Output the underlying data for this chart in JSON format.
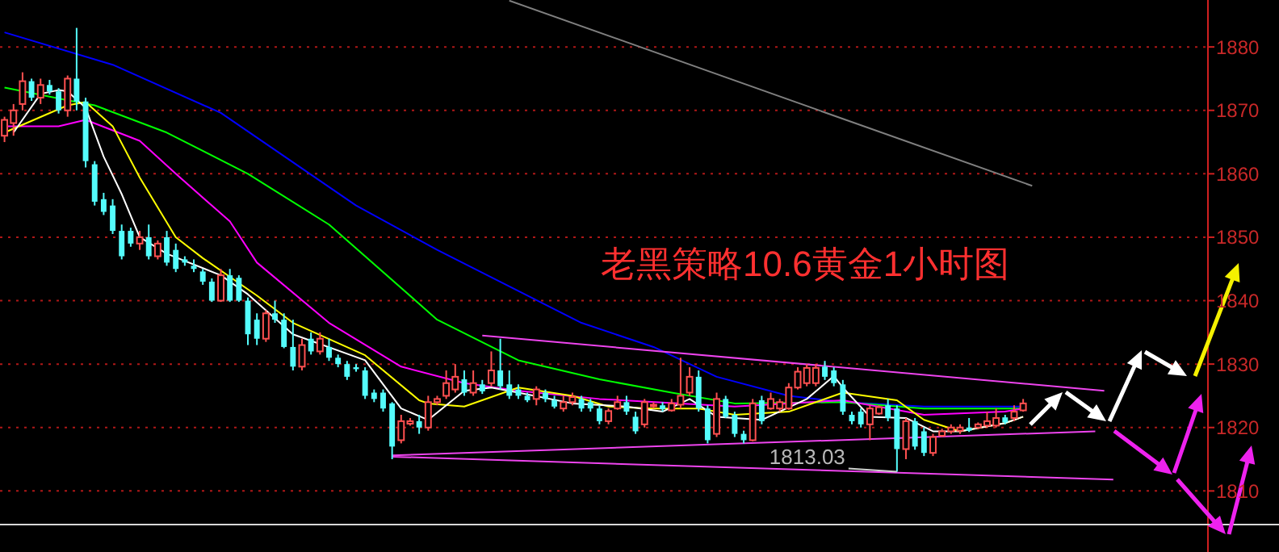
{
  "chart_data": {
    "type": "candlestick",
    "title": "老黑策略10.6黄金1小时图",
    "categories": [
      null,
      null,
      null,
      null,
      null,
      null,
      null,
      null,
      null,
      null,
      null,
      null,
      null,
      null,
      null,
      null,
      null,
      null,
      null,
      null,
      null,
      null,
      null,
      null,
      null,
      null,
      null,
      null,
      null,
      null,
      null,
      null,
      null,
      null,
      null,
      null,
      null,
      null,
      null,
      null,
      null,
      null,
      null,
      null,
      null,
      null,
      null,
      null,
      null,
      null,
      null,
      null,
      null,
      null,
      null,
      null,
      null,
      null,
      null,
      null,
      null,
      null,
      null,
      null,
      null,
      null,
      null,
      null,
      null,
      null,
      null,
      null,
      null,
      null,
      null,
      null,
      null,
      null,
      null,
      null,
      null,
      null,
      null,
      null,
      null,
      null,
      null,
      null,
      null,
      null,
      null,
      null,
      null,
      null,
      null,
      null,
      null,
      null,
      null,
      null,
      null,
      null,
      null,
      null,
      null,
      null,
      null,
      null,
      null,
      null,
      null,
      null,
      null,
      null,
      null,
      null,
      null,
      null,
      null,
      null,
      null,
      null,
      null,
      null,
      null,
      null,
      null,
      null,
      null,
      null,
      null,
      null,
      null,
      null
    ],
    "ohlc": [
      [
        1866,
        1869,
        1865,
        1868.5
      ],
      [
        1868,
        1871,
        1866,
        1870
      ],
      [
        1871,
        1876,
        1870,
        1874.6
      ],
      [
        1874.6,
        1875,
        1871.5,
        1872
      ],
      [
        1872,
        1875,
        1871,
        1874
      ],
      [
        1874,
        1874.8,
        1872.5,
        1873
      ],
      [
        1873,
        1873.5,
        1869.5,
        1870
      ],
      [
        1870,
        1875.5,
        1869,
        1875
      ],
      [
        1875,
        1883,
        1870,
        1871.4
      ],
      [
        1871.4,
        1872,
        1861,
        1862
      ],
      [
        1861.5,
        1862,
        1855,
        1855.6
      ],
      [
        1856,
        1857,
        1853.5,
        1854
      ],
      [
        1855,
        1856,
        1850.5,
        1851
      ],
      [
        1851,
        1852,
        1846.5,
        1847
      ],
      [
        1851,
        1851.5,
        1848.5,
        1849
      ],
      [
        1849,
        1851,
        1848,
        1850
      ],
      [
        1850,
        1852,
        1846.5,
        1847
      ],
      [
        1847,
        1849.5,
        1846.5,
        1849
      ],
      [
        1850,
        1851,
        1845.5,
        1846
      ],
      [
        1848,
        1849,
        1844.5,
        1845
      ],
      [
        1846.5,
        1847,
        1845.5,
        1846
      ],
      [
        1845.5,
        1846.5,
        1844.5,
        1845
      ],
      [
        1844.6,
        1845,
        1842.5,
        1843
      ],
      [
        1843,
        1843.5,
        1839.8,
        1840
      ],
      [
        1840,
        1845,
        1839.8,
        1844
      ],
      [
        1844,
        1845,
        1839.8,
        1840
      ],
      [
        1843.6,
        1844,
        1839.8,
        1840
      ],
      [
        1840,
        1840.5,
        1833,
        1834.7
      ],
      [
        1837,
        1838,
        1833,
        1834
      ],
      [
        1834,
        1838.5,
        1833.5,
        1838
      ],
      [
        1838,
        1840,
        1836.5,
        1837
      ],
      [
        1837,
        1838,
        1832.5,
        1832.7
      ],
      [
        1832.7,
        1837,
        1829,
        1829.6
      ],
      [
        1829.6,
        1834,
        1829,
        1833
      ],
      [
        1834,
        1835,
        1831.5,
        1832
      ],
      [
        1832,
        1835,
        1831.5,
        1834
      ],
      [
        1832.7,
        1834,
        1830.5,
        1831
      ],
      [
        1831,
        1831.5,
        1829.5,
        1830
      ],
      [
        1830,
        1830.5,
        1827.5,
        1828
      ],
      [
        1829.5,
        1830,
        1828.8,
        1829.2
      ],
      [
        1829,
        1829.5,
        1824.5,
        1825
      ],
      [
        1825.5,
        1826,
        1824,
        1824.5
      ],
      [
        1825.5,
        1826,
        1822.5,
        1823
      ],
      [
        1823.8,
        1824,
        1815,
        1817
      ],
      [
        1818,
        1822,
        1817.5,
        1821
      ],
      [
        1820.6,
        1821.5,
        1820.3,
        1821
      ],
      [
        1821,
        1822,
        1819,
        1820
      ],
      [
        1820,
        1825,
        1819.5,
        1824
      ],
      [
        1824,
        1825,
        1823.5,
        1824.5
      ],
      [
        1825,
        1829,
        1824.5,
        1827
      ],
      [
        1826,
        1830,
        1825.5,
        1828
      ],
      [
        1827.6,
        1829,
        1825,
        1825.5
      ],
      [
        1825.5,
        1829,
        1825,
        1827
      ],
      [
        1826.8,
        1827.5,
        1825.3,
        1825.7
      ],
      [
        1827,
        1832,
        1826.5,
        1829
      ],
      [
        1829,
        1834,
        1826,
        1826.5
      ],
      [
        1826.8,
        1829,
        1824.5,
        1825
      ],
      [
        1826,
        1826.8,
        1824.5,
        1825
      ],
      [
        1825,
        1825.5,
        1824,
        1824.3
      ],
      [
        1824.5,
        1826.5,
        1823.5,
        1826
      ],
      [
        1825.5,
        1826,
        1824,
        1824.5
      ],
      [
        1824.3,
        1825,
        1823,
        1823.3
      ],
      [
        1823,
        1825,
        1822.5,
        1824
      ],
      [
        1824,
        1825.5,
        1823.5,
        1824.8
      ],
      [
        1824.5,
        1825,
        1822.5,
        1823
      ],
      [
        1824,
        1824.5,
        1822.5,
        1823
      ],
      [
        1823,
        1823.5,
        1820.5,
        1821
      ],
      [
        1821,
        1823,
        1820.5,
        1822.6
      ],
      [
        1823,
        1825,
        1822.8,
        1824
      ],
      [
        1824,
        1825,
        1822,
        1822.5
      ],
      [
        1821.7,
        1822.5,
        1819,
        1819.4
      ],
      [
        1820.5,
        1824.5,
        1820,
        1824
      ],
      [
        1823.4,
        1824,
        1823,
        1823.6
      ],
      [
        1823.5,
        1824,
        1822.5,
        1822.9
      ],
      [
        1822.7,
        1824.5,
        1822.5,
        1823.8
      ],
      [
        1823.6,
        1831,
        1823,
        1825
      ],
      [
        1825.5,
        1829.5,
        1825,
        1828
      ],
      [
        1828,
        1829,
        1822.5,
        1823
      ],
      [
        1823,
        1823.5,
        1817.5,
        1818
      ],
      [
        1819,
        1825.5,
        1818.5,
        1824.5
      ],
      [
        1824.5,
        1825,
        1821.5,
        1821.7
      ],
      [
        1822,
        1822.5,
        1818.5,
        1819
      ],
      [
        1819,
        1819.5,
        1817.5,
        1818
      ],
      [
        1818,
        1824.5,
        1817.8,
        1823.8
      ],
      [
        1824.3,
        1825,
        1820.5,
        1821
      ],
      [
        1823,
        1825.5,
        1822.8,
        1824.5
      ],
      [
        1823,
        1824.5,
        1822.5,
        1824
      ],
      [
        1823,
        1827,
        1822.8,
        1826.3
      ],
      [
        1826.3,
        1829.5,
        1826,
        1828.8
      ],
      [
        1827,
        1830,
        1826.5,
        1829.4
      ],
      [
        1827,
        1830,
        1826.5,
        1829.4
      ],
      [
        1829.6,
        1830.5,
        1827.5,
        1828
      ],
      [
        1829,
        1829.5,
        1826.5,
        1827
      ],
      [
        1826.8,
        1827.5,
        1822,
        1822.5
      ],
      [
        1822,
        1822.5,
        1820.5,
        1821
      ],
      [
        1822.5,
        1823,
        1820,
        1820.5
      ],
      [
        1820.5,
        1823.5,
        1818,
        1823
      ],
      [
        1822.2,
        1823.5,
        1822,
        1823.2
      ],
      [
        1823.5,
        1824.5,
        1821,
        1821.5
      ],
      [
        1823,
        1823.5,
        1813.03,
        1816.6
      ],
      [
        1816.6,
        1821.5,
        1815,
        1821
      ],
      [
        1821,
        1821.5,
        1816.5,
        1817
      ],
      [
        1819.4,
        1820,
        1815.5,
        1816
      ],
      [
        1816,
        1819,
        1815.5,
        1818.5
      ],
      [
        1818.7,
        1819.8,
        1818.5,
        1819.4
      ],
      [
        1819.4,
        1820.5,
        1819,
        1820
      ],
      [
        1819.5,
        1820.5,
        1819,
        1820
      ],
      [
        1820,
        1821.5,
        1819.3,
        1819.5
      ],
      [
        1820,
        1820.8,
        1819.8,
        1820.5
      ],
      [
        1820.3,
        1822.5,
        1820,
        1821
      ],
      [
        1820.3,
        1823,
        1820,
        1821.5
      ],
      [
        1821.6,
        1822,
        1820.5,
        1820.8
      ],
      [
        1821.5,
        1823.5,
        1821,
        1822.5
      ],
      [
        1822.7,
        1824.5,
        1822.5,
        1823.8
      ],
      null,
      null,
      null,
      null,
      null,
      null,
      null,
      null,
      null,
      null,
      null,
      null,
      null,
      null,
      null,
      null,
      null,
      null,
      null,
      null
    ],
    "colors": [
      "#ff5050",
      "#ff5050",
      "#ff5050",
      "#54fcfc",
      "#ff5050",
      "#54fcfc",
      "#54fcfc",
      "#ff5050",
      "#54fcfc",
      "#54fcfc",
      "#54fcfc",
      "#54fcfc",
      "#54fcfc",
      "#54fcfc",
      "#54fcfc",
      "#ff5050",
      "#54fcfc",
      "#ff5050",
      "#54fcfc",
      "#54fcfc",
      "#54fcfc",
      "#54fcfc",
      "#54fcfc",
      "#54fcfc",
      "#ff5050",
      "#54fcfc",
      "#54fcfc",
      "#54fcfc",
      "#54fcfc",
      "#ff5050",
      "#54fcfc",
      "#54fcfc",
      "#54fcfc",
      "#ff5050",
      "#54fcfc",
      "#ff5050",
      "#54fcfc",
      "#54fcfc",
      "#54fcfc",
      "#54fcfc",
      "#54fcfc",
      "#54fcfc",
      "#54fcfc",
      "#54fcfc",
      "#ff5050",
      "#ff5050",
      "#54fcfc",
      "#ff5050",
      "#ff5050",
      "#ff5050",
      "#ff5050",
      "#54fcfc",
      "#ff5050",
      "#54fcfc",
      "#ff5050",
      "#54fcfc",
      "#54fcfc",
      "#54fcfc",
      "#54fcfc",
      "#ff5050",
      "#54fcfc",
      "#54fcfc",
      "#ff5050",
      "#ff5050",
      "#54fcfc",
      "#54fcfc",
      "#54fcfc",
      "#ff5050",
      "#ff5050",
      "#54fcfc",
      "#54fcfc",
      "#ff5050",
      "#ff5050",
      "#54fcfc",
      "#ff5050",
      "#ff5050",
      "#ff5050",
      "#54fcfc",
      "#54fcfc",
      "#ff5050",
      "#54fcfc",
      "#54fcfc",
      "#54fcfc",
      "#ff5050",
      "#54fcfc",
      "#ff5050",
      "#ff5050",
      "#ff5050",
      "#ff5050",
      "#ff5050",
      "#ff5050",
      "#54fcfc",
      "#54fcfc",
      "#54fcfc",
      "#54fcfc",
      "#54fcfc",
      "#ff5050",
      "#ff5050",
      "#54fcfc",
      "#54fcfc",
      "#ff5050",
      "#54fcfc",
      "#54fcfc",
      "#ff5050",
      "#ff5050",
      "#ff5050",
      "#ff5050",
      "#54fcfc",
      "#ff5050",
      "#ff5050",
      "#ff5050",
      "#54fcfc",
      "#ff5050",
      "#ff5050",
      null,
      null,
      null,
      null,
      null,
      null,
      null,
      null,
      null,
      null,
      null,
      null,
      null,
      null,
      null,
      null,
      null,
      null,
      null,
      null
    ],
    "series": [
      {
        "type": "line",
        "color": "#0000ff",
        "values": [
          1882.3,
          null,
          null,
          null,
          null,
          null,
          null,
          null,
          null,
          null,
          null,
          null,
          1877.2,
          null,
          null,
          null,
          null,
          null,
          null,
          null,
          null,
          null,
          null,
          null,
          1869.6,
          null,
          null,
          null,
          null,
          null,
          null,
          null,
          null,
          null,
          null,
          null,
          null,
          null,
          null,
          1855,
          null,
          null,
          null,
          null,
          null,
          null,
          null,
          null,
          1848,
          null,
          null,
          null,
          null,
          null,
          null,
          null,
          null,
          null,
          null,
          null,
          null,
          null,
          null,
          null,
          1836.5,
          null,
          null,
          null,
          null,
          null,
          null,
          null,
          1832.7,
          null,
          null,
          null,
          null,
          null,
          null,
          1828,
          null,
          null,
          null,
          null,
          null,
          null,
          null,
          1825,
          null,
          null,
          null,
          null,
          null,
          1824,
          null,
          null,
          null,
          null,
          null,
          null,
          null,
          null,
          1823.3,
          null,
          null,
          null,
          null,
          null,
          null,
          null,
          null,
          null,
          null,
          1823.3,
          null,
          null,
          null,
          null,
          null,
          null,
          null,
          null,
          null,
          null,
          null,
          null,
          null,
          null,
          null,
          null,
          null,
          null,
          null,
          null
        ]
      },
      {
        "type": "line",
        "color": "#00ff00",
        "values": [
          1873.6,
          null,
          null,
          null,
          null,
          null,
          null,
          1871.6,
          null,
          null,
          1870.8,
          null,
          null,
          null,
          null,
          null,
          null,
          null,
          1866.5,
          null,
          null,
          null,
          null,
          null,
          null,
          null,
          null,
          1860,
          null,
          null,
          null,
          null,
          null,
          null,
          null,
          null,
          1852,
          null,
          null,
          null,
          null,
          null,
          null,
          null,
          null,
          null,
          null,
          null,
          1837,
          null,
          null,
          null,
          null,
          null,
          null,
          null,
          null,
          1830.6,
          null,
          null,
          null,
          null,
          null,
          null,
          null,
          null,
          1827.6,
          null,
          null,
          null,
          null,
          null,
          null,
          null,
          1825.5,
          null,
          null,
          null,
          null,
          null,
          null,
          1823.8,
          null,
          null,
          null,
          null,
          null,
          null,
          null,
          null,
          null,
          null,
          null,
          1824,
          null,
          null,
          null,
          null,
          null,
          null,
          null,
          null,
          1823,
          null,
          null,
          null,
          null,
          null,
          null,
          null,
          null,
          null,
          null,
          1823,
          null,
          null,
          null,
          null,
          null,
          null,
          null,
          null,
          null,
          null,
          null,
          null,
          null,
          null,
          null,
          null,
          null,
          null,
          null,
          null
        ]
      },
      {
        "type": "line",
        "color": "#ff00ff",
        "values": [
          1867.5,
          null,
          null,
          null,
          null,
          null,
          1867.5,
          null,
          null,
          1868.5,
          null,
          null,
          null,
          null,
          null,
          1865.2,
          null,
          null,
          null,
          1860,
          null,
          null,
          null,
          null,
          null,
          1852.5,
          null,
          null,
          1846,
          null,
          null,
          null,
          null,
          null,
          null,
          null,
          1836.5,
          null,
          null,
          null,
          null,
          null,
          null,
          null,
          1829.6,
          null,
          null,
          null,
          null,
          null,
          null,
          1827,
          null,
          null,
          null,
          null,
          null,
          1825.8,
          null,
          null,
          null,
          null,
          null,
          null,
          null,
          null,
          1824.5,
          null,
          null,
          null,
          null,
          null,
          null,
          null,
          null,
          1823.8,
          null,
          null,
          null,
          null,
          null,
          1823.3,
          null,
          null,
          null,
          null,
          null,
          null,
          null,
          null,
          null,
          null,
          null,
          1824.3,
          null,
          null,
          null,
          null,
          null,
          null,
          null,
          null,
          1822,
          null,
          null,
          null,
          null,
          null,
          null,
          null,
          null,
          1822.5,
          null,
          1823,
          null,
          null,
          null,
          null,
          null,
          null,
          null,
          null,
          null,
          null,
          null,
          null,
          null,
          null,
          null,
          null,
          null,
          null,
          null,
          null
        ]
      },
      {
        "type": "line",
        "color": "#ffff00",
        "values": [
          1866.5,
          null,
          null,
          null,
          null,
          null,
          null,
          1870.8,
          null,
          1871.3,
          null,
          null,
          1867.5,
          null,
          null,
          1859.4,
          null,
          null,
          null,
          1850,
          null,
          null,
          1846.7,
          null,
          null,
          null,
          null,
          null,
          1840.8,
          null,
          null,
          null,
          1836.5,
          null,
          null,
          null,
          null,
          null,
          null,
          null,
          1831.4,
          null,
          null,
          null,
          null,
          null,
          1824.3,
          1823.8,
          null,
          null,
          null,
          1823.3,
          null,
          null,
          null,
          null,
          null,
          1826.3,
          null,
          null,
          null,
          null,
          null,
          1825,
          null,
          null,
          null,
          1823.3,
          null,
          null,
          null,
          null,
          1823,
          null,
          null,
          null,
          null,
          1823,
          null,
          null,
          null,
          1822,
          null,
          null,
          null,
          null,
          null,
          1822.5,
          null,
          null,
          null,
          null,
          null,
          1825.5,
          null,
          null,
          null,
          null,
          null,
          1824.3,
          null,
          null,
          1821.2,
          null,
          null,
          null,
          1819.4,
          null,
          null,
          null,
          null,
          1820.7,
          null,
          1821.7,
          null,
          null,
          null,
          null,
          null,
          null,
          null,
          null,
          null,
          null,
          null,
          null,
          null,
          null,
          null,
          null,
          null,
          null,
          null,
          null
        ]
      },
      {
        "type": "line",
        "color": "#ffffff",
        "values": [
          null,
          1866.5,
          null,
          null,
          1872.6,
          null,
          1873.2,
          1873,
          null,
          1870.4,
          null,
          1862.7,
          null,
          1856.8,
          null,
          1850,
          null,
          null,
          1847.4,
          null,
          null,
          null,
          null,
          null,
          1844,
          null,
          null,
          1841,
          null,
          null,
          null,
          null,
          1834.7,
          null,
          null,
          null,
          null,
          null,
          null,
          null,
          1830.6,
          null,
          null,
          null,
          1823,
          null,
          null,
          1821.2,
          null,
          null,
          null,
          1825.8,
          null,
          null,
          1826.3,
          null,
          null,
          1825.5,
          null,
          null,
          null,
          null,
          null,
          1823.8,
          null,
          null,
          null,
          null,
          null,
          1823.3,
          null,
          null,
          null,
          1822.5,
          null,
          null,
          1824.5,
          null,
          null,
          1821.7,
          null,
          null,
          null,
          null,
          1821.2,
          null,
          null,
          null,
          null,
          1824.5,
          null,
          null,
          1828.1,
          1826.3,
          null,
          null,
          1821.7,
          null,
          null,
          null,
          1821.5,
          null,
          null,
          1819.4,
          null,
          null,
          1819.4,
          null,
          null,
          null,
          null,
          1820.7,
          null,
          1821.7,
          null,
          null,
          null,
          null,
          null,
          null,
          null,
          null,
          null,
          null,
          null,
          null,
          null,
          null,
          null,
          null,
          null,
          null,
          null,
          null
        ]
      },
      {
        "type": "line",
        "color": "#808080",
        "values": [
          null,
          null,
          null,
          null,
          null,
          null,
          null,
          null,
          null,
          null,
          null,
          null,
          null,
          null,
          null,
          null,
          null,
          null,
          null,
          null,
          null,
          null,
          null,
          null,
          null,
          null,
          null,
          null,
          null,
          null,
          null,
          null,
          null,
          null,
          null,
          null,
          null,
          null,
          null,
          null,
          null,
          null,
          null,
          null,
          null,
          null,
          null,
          null,
          null,
          null,
          null,
          null,
          null,
          null,
          null,
          null,
          1887.3,
          null,
          null,
          null,
          null,
          null,
          null,
          null,
          null,
          null,
          null,
          null,
          null,
          null,
          null,
          null,
          null,
          null,
          null,
          null,
          null,
          null,
          null,
          null,
          null,
          null,
          null,
          null,
          null,
          null,
          null,
          null,
          null,
          null,
          null,
          null,
          null,
          null,
          null,
          null,
          null,
          null,
          null,
          null,
          null,
          null,
          null,
          null,
          null,
          null,
          null,
          null,
          null,
          null,
          null,
          null,
          null,
          null,
          1858.1,
          null,
          null,
          null,
          null,
          null,
          null,
          null,
          null,
          null,
          null,
          null,
          null,
          null,
          null,
          null,
          null,
          null,
          null,
          null
        ]
      },
      {
        "type": "line",
        "color": "#ee44ee",
        "values": [
          null,
          null,
          null,
          null,
          null,
          null,
          null,
          null,
          null,
          null,
          null,
          null,
          null,
          null,
          null,
          null,
          null,
          null,
          null,
          null,
          null,
          null,
          null,
          null,
          null,
          null,
          null,
          null,
          null,
          null,
          null,
          null,
          null,
          null,
          null,
          null,
          null,
          null,
          null,
          null,
          null,
          null,
          null,
          null,
          null,
          null,
          null,
          null,
          null,
          null,
          null,
          null,
          null,
          1834.5,
          null,
          null,
          null,
          null,
          null,
          null,
          null,
          null,
          null,
          null,
          null,
          null,
          null,
          null,
          null,
          null,
          null,
          null,
          null,
          null,
          null,
          null,
          null,
          null,
          null,
          null,
          null,
          null,
          null,
          null,
          null,
          null,
          null,
          null,
          null,
          null,
          null,
          null,
          null,
          null,
          null,
          null,
          null,
          null,
          null,
          null,
          null,
          null,
          null,
          null,
          null,
          null,
          null,
          null,
          null,
          null,
          null,
          null,
          null,
          null,
          null,
          null,
          null,
          null,
          null,
          null,
          null,
          null,
          1825.8,
          null,
          null,
          null,
          null,
          null,
          null,
          null,
          null,
          null,
          null,
          null
        ]
      },
      {
        "type": "line",
        "color": "#ee44ee",
        "values": [
          null,
          null,
          null,
          null,
          null,
          null,
          null,
          null,
          null,
          null,
          null,
          null,
          null,
          null,
          null,
          null,
          null,
          null,
          null,
          null,
          null,
          null,
          null,
          null,
          null,
          null,
          null,
          null,
          null,
          null,
          null,
          null,
          null,
          null,
          null,
          null,
          null,
          null,
          null,
          null,
          null,
          null,
          null,
          1815.6,
          null,
          null,
          null,
          null,
          null,
          null,
          null,
          null,
          null,
          null,
          null,
          null,
          null,
          null,
          null,
          null,
          null,
          null,
          null,
          null,
          null,
          null,
          null,
          null,
          null,
          null,
          null,
          null,
          null,
          null,
          null,
          null,
          null,
          null,
          null,
          null,
          null,
          null,
          null,
          null,
          null,
          null,
          null,
          null,
          null,
          null,
          null,
          null,
          null,
          null,
          null,
          null,
          null,
          null,
          null,
          null,
          null,
          null,
          null,
          null,
          null,
          null,
          null,
          null,
          null,
          null,
          null,
          null,
          null,
          null,
          null,
          null,
          null,
          null,
          null,
          null,
          null,
          1819.4,
          null,
          null,
          null,
          null,
          null,
          null,
          null,
          null,
          null,
          null,
          null,
          null
        ]
      },
      {
        "type": "line",
        "color": "#ee44ee",
        "values": [
          null,
          null,
          null,
          null,
          null,
          null,
          null,
          null,
          null,
          null,
          null,
          null,
          null,
          null,
          null,
          null,
          null,
          null,
          null,
          null,
          null,
          null,
          null,
          null,
          null,
          null,
          null,
          null,
          null,
          null,
          null,
          null,
          null,
          null,
          null,
          null,
          null,
          null,
          null,
          null,
          null,
          null,
          null,
          1815.4,
          null,
          null,
          null,
          null,
          null,
          null,
          null,
          null,
          null,
          null,
          null,
          null,
          null,
          null,
          null,
          null,
          null,
          null,
          null,
          null,
          null,
          null,
          null,
          null,
          null,
          null,
          null,
          null,
          null,
          null,
          null,
          null,
          null,
          null,
          null,
          null,
          null,
          null,
          null,
          null,
          null,
          null,
          null,
          null,
          null,
          null,
          null,
          null,
          null,
          null,
          null,
          null,
          null,
          null,
          null,
          null,
          null,
          null,
          null,
          null,
          null,
          null,
          null,
          null,
          null,
          null,
          null,
          null,
          null,
          null,
          null,
          null,
          null,
          null,
          null,
          null,
          null,
          null,
          null,
          1811.8,
          null,
          null,
          null,
          null,
          null,
          null,
          null,
          null,
          null,
          null
        ]
      }
    ],
    "annotations": [
      {
        "text": "1813.03",
        "y": 1813.03
      }
    ],
    "ylim": [
      1804.7,
      1887.4
    ],
    "yticks": [
      1810,
      1820,
      1830,
      1840,
      1850,
      1860,
      1870,
      1880
    ],
    "grid": "y",
    "tick_labels": "y"
  }
}
